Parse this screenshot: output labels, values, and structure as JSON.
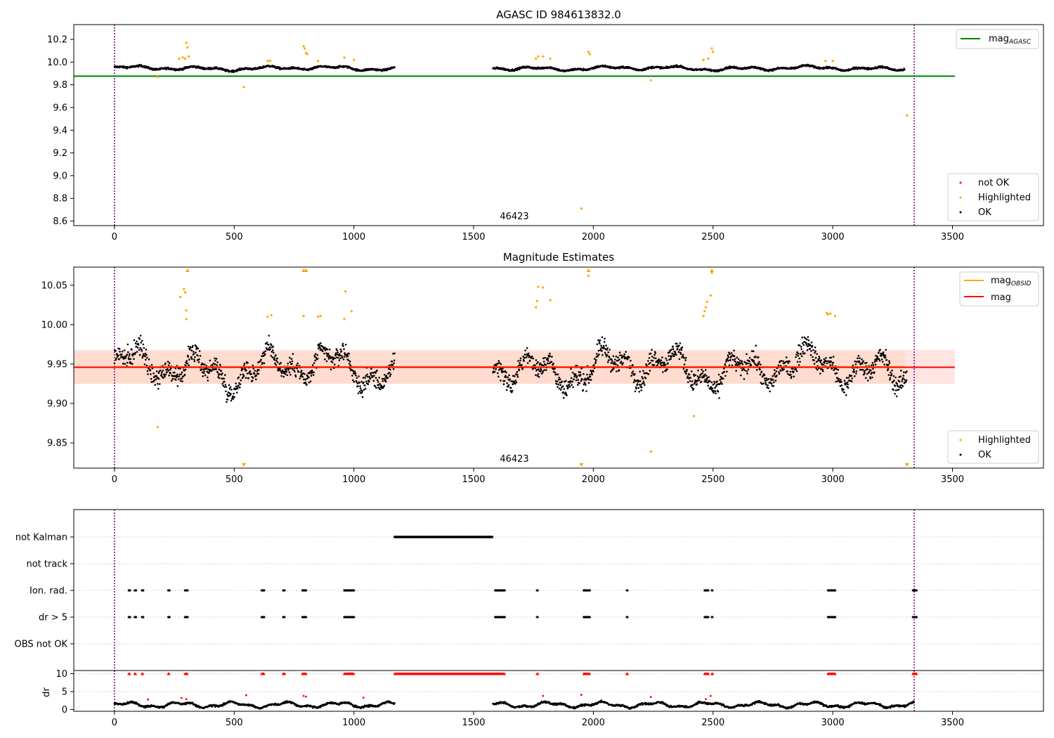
{
  "colors": {
    "ok": "#000000",
    "highlighted": "#ffa500",
    "not_ok": "#ff0000",
    "agasc_line": "#008000",
    "obsid_line": "#ffa500",
    "mag_line": "#ff0000",
    "band_outer": "#ffe4e1",
    "band_inner": "#ffdccf",
    "obs_vline": "#800080",
    "flag_grid": "#b0b0b0"
  },
  "x_ticks": [
    "0",
    "500",
    "1000",
    "1500",
    "2000",
    "2500",
    "3000",
    "3500"
  ],
  "chart_data": [
    {
      "id": "panel1",
      "type": "scatter",
      "title": "AGASC ID 984613832.0",
      "xlim": [
        -170,
        3880
      ],
      "ylim": [
        8.56,
        10.33
      ],
      "y_ticks": [
        "8.6",
        "8.8",
        "9.0",
        "9.2",
        "9.4",
        "9.6",
        "9.8",
        "10.0",
        "10.2"
      ],
      "x_ticks": [
        "0",
        "500",
        "1000",
        "1500",
        "2000",
        "2500",
        "3000",
        "3500"
      ],
      "annotation": "46423",
      "annotation_x": 1670,
      "mag_agasc": 9.876,
      "obs_boundaries": [
        0,
        3340
      ],
      "gap": [
        1170,
        1580
      ],
      "legend_lines": [
        "mag_{AGASC}"
      ],
      "legend_points": [
        "not OK",
        "Highlighted",
        "OK"
      ],
      "base": 9.95,
      "highlight_points": [
        {
          "x": 180,
          "y": 9.87
        },
        {
          "x": 270,
          "y": 10.03
        },
        {
          "x": 285,
          "y": 10.04
        },
        {
          "x": 295,
          "y": 10.03
        },
        {
          "x": 300,
          "y": 10.17
        },
        {
          "x": 305,
          "y": 10.13
        },
        {
          "x": 310,
          "y": 10.05
        },
        {
          "x": 540,
          "y": 9.78
        },
        {
          "x": 640,
          "y": 10.01
        },
        {
          "x": 650,
          "y": 10.01
        },
        {
          "x": 790,
          "y": 10.14
        },
        {
          "x": 795,
          "y": 10.12
        },
        {
          "x": 800,
          "y": 10.08
        },
        {
          "x": 805,
          "y": 10.07
        },
        {
          "x": 850,
          "y": 10.01
        },
        {
          "x": 960,
          "y": 10.04
        },
        {
          "x": 1000,
          "y": 10.02
        },
        {
          "x": 1760,
          "y": 10.03
        },
        {
          "x": 1770,
          "y": 10.05
        },
        {
          "x": 1790,
          "y": 10.05
        },
        {
          "x": 1820,
          "y": 10.03
        },
        {
          "x": 1950,
          "y": 8.71
        },
        {
          "x": 1980,
          "y": 10.09
        },
        {
          "x": 1985,
          "y": 10.07
        },
        {
          "x": 2240,
          "y": 9.84
        },
        {
          "x": 2460,
          "y": 10.02
        },
        {
          "x": 2480,
          "y": 10.03
        },
        {
          "x": 2495,
          "y": 10.12
        },
        {
          "x": 2500,
          "y": 10.09
        },
        {
          "x": 2970,
          "y": 10.01
        },
        {
          "x": 3000,
          "y": 10.01
        },
        {
          "x": 3310,
          "y": 9.53
        }
      ]
    },
    {
      "id": "panel2",
      "type": "scatter",
      "title": "Magnitude Estimates",
      "xlim": [
        -170,
        3880
      ],
      "ylim": [
        9.818,
        10.073
      ],
      "y_ticks": [
        "9.85",
        "9.90",
        "9.95",
        "10.00",
        "10.05"
      ],
      "x_ticks": [
        "0",
        "500",
        "1000",
        "1500",
        "2000",
        "2500",
        "3000",
        "3500"
      ],
      "annotation": "46423",
      "annotation_x": 1670,
      "mag": 9.946,
      "band_outer": [
        9.925,
        9.968
      ],
      "band_inner": [
        9.925,
        9.966
      ],
      "mag_obsid_x": [
        0,
        3300
      ],
      "obs_boundaries": [
        0,
        3340
      ],
      "gap": [
        1170,
        1580
      ],
      "legend_lines": [
        "mag_{OBSID}",
        "mag"
      ],
      "legend_points": [
        "Highlighted",
        "OK"
      ],
      "highlight_points": [
        {
          "x": 180,
          "y": 9.87
        },
        {
          "x": 275,
          "y": 10.035
        },
        {
          "x": 290,
          "y": 10.045
        },
        {
          "x": 295,
          "y": 10.041
        },
        {
          "x": 300,
          "y": 10.018
        },
        {
          "x": 300,
          "y": 10.007
        },
        {
          "x": 640,
          "y": 10.01
        },
        {
          "x": 655,
          "y": 10.012
        },
        {
          "x": 790,
          "y": 10.011
        },
        {
          "x": 850,
          "y": 10.01
        },
        {
          "x": 860,
          "y": 10.011
        },
        {
          "x": 960,
          "y": 10.007
        },
        {
          "x": 965,
          "y": 10.042
        },
        {
          "x": 990,
          "y": 10.017
        },
        {
          "x": 1760,
          "y": 10.022
        },
        {
          "x": 1765,
          "y": 10.03
        },
        {
          "x": 1770,
          "y": 10.048
        },
        {
          "x": 1790,
          "y": 10.047
        },
        {
          "x": 1820,
          "y": 10.031
        },
        {
          "x": 1980,
          "y": 10.062
        },
        {
          "x": 2240,
          "y": 9.839
        },
        {
          "x": 2420,
          "y": 9.884
        },
        {
          "x": 2460,
          "y": 10.011
        },
        {
          "x": 2465,
          "y": 10.017
        },
        {
          "x": 2470,
          "y": 10.022
        },
        {
          "x": 2475,
          "y": 10.029
        },
        {
          "x": 2490,
          "y": 10.037
        },
        {
          "x": 2495,
          "y": 10.066
        },
        {
          "x": 2975,
          "y": 10.015
        },
        {
          "x": 2980,
          "y": 10.013
        },
        {
          "x": 2990,
          "y": 10.014
        },
        {
          "x": 3010,
          "y": 10.011
        }
      ],
      "clipped_top": [
        {
          "x": 305,
          "y": 10.07
        },
        {
          "x": 790,
          "y": 10.07
        },
        {
          "x": 800,
          "y": 10.07
        },
        {
          "x": 1980,
          "y": 10.07
        },
        {
          "x": 2495,
          "y": 10.07
        }
      ],
      "clipped_bottom": [
        {
          "x": 540,
          "y": 9.82
        },
        {
          "x": 1950,
          "y": 9.82
        },
        {
          "x": 3310,
          "y": 9.82
        }
      ]
    },
    {
      "id": "panel3",
      "type": "scatter",
      "title": "",
      "xlim": [
        -170,
        3880
      ],
      "obs_boundaries": [
        0,
        3340
      ],
      "flag_labels": [
        "not Kalman",
        "not track",
        "Ion. rad.",
        "dr > 5",
        "OBS not OK"
      ],
      "not_kalman_range": [
        1170,
        1580
      ],
      "flag_ranges": [
        {
          "flag": "Ion. rad.",
          "ranges": [
            [
              60,
              65
            ],
            [
              85,
              90
            ],
            [
              115,
              120
            ],
            [
              225,
              230
            ],
            [
              295,
              305
            ],
            [
              615,
              625
            ],
            [
              705,
              712
            ],
            [
              785,
              800
            ],
            [
              960,
              1000
            ],
            [
              1590,
              1630
            ],
            [
              1765,
              1768
            ],
            [
              1960,
              1985
            ],
            [
              2140,
              2143
            ],
            [
              2465,
              2480
            ],
            [
              2495,
              2498
            ],
            [
              2980,
              3010
            ],
            [
              3335,
              3350
            ]
          ]
        },
        {
          "flag": "dr > 5",
          "ranges": [
            [
              60,
              65
            ],
            [
              85,
              90
            ],
            [
              115,
              120
            ],
            [
              225,
              230
            ],
            [
              295,
              305
            ],
            [
              615,
              625
            ],
            [
              705,
              712
            ],
            [
              785,
              800
            ],
            [
              960,
              1000
            ],
            [
              1590,
              1630
            ],
            [
              1765,
              1768
            ],
            [
              1960,
              1985
            ],
            [
              2140,
              2143
            ],
            [
              2465,
              2480
            ],
            [
              2495,
              2498
            ],
            [
              2980,
              3010
            ],
            [
              3335,
              3350
            ]
          ]
        }
      ]
    },
    {
      "id": "panel4",
      "type": "scatter",
      "title": "",
      "xlim": [
        -170,
        3880
      ],
      "ylim": [
        -0.5,
        10.3
      ],
      "ylabel": "dr",
      "y_ticks": [
        "0",
        "5",
        "10"
      ],
      "x_ticks": [
        "0",
        "500",
        "1000",
        "1500",
        "2000",
        "2500",
        "3000",
        "3500"
      ],
      "obs_boundaries": [
        0,
        3340
      ],
      "clipped_ranges": [
        [
          60,
          65
        ],
        [
          85,
          90
        ],
        [
          115,
          120
        ],
        [
          225,
          230
        ],
        [
          295,
          305
        ],
        [
          615,
          625
        ],
        [
          705,
          712
        ],
        [
          785,
          800
        ],
        [
          960,
          1000
        ],
        [
          1170,
          1630
        ],
        [
          1765,
          1768
        ],
        [
          1960,
          1985
        ],
        [
          2140,
          2143
        ],
        [
          2465,
          2480
        ],
        [
          2495,
          2498
        ],
        [
          2980,
          3010
        ],
        [
          3335,
          3350
        ]
      ],
      "red_points": [
        {
          "x": 140,
          "y": 2.8
        },
        {
          "x": 280,
          "y": 3.2
        },
        {
          "x": 300,
          "y": 2.9
        },
        {
          "x": 550,
          "y": 4.0
        },
        {
          "x": 790,
          "y": 3.8
        },
        {
          "x": 800,
          "y": 3.6
        },
        {
          "x": 1040,
          "y": 3.3
        },
        {
          "x": 1790,
          "y": 3.8
        },
        {
          "x": 1950,
          "y": 4.1
        },
        {
          "x": 2240,
          "y": 3.5
        },
        {
          "x": 2470,
          "y": 2.9
        },
        {
          "x": 2490,
          "y": 3.8
        }
      ]
    }
  ]
}
